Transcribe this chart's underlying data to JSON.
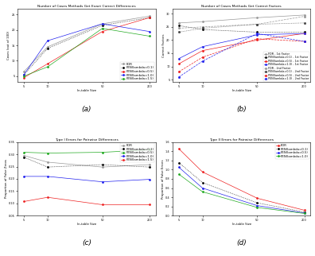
{
  "x": [
    5,
    10,
    50,
    200
  ],
  "title_a": "Number of Cases Methods Get Exact Correct Differences",
  "title_b": "Number of Cases Methods Get Correct Factors",
  "title_c": "Type I Errors for Pairwise Differences",
  "title_d": "Type II Errors for Pairwise Differences",
  "xlabel": "In-table Size",
  "ylabel_a": "Cases (out of 100)",
  "ylabel_b": "Correct Factors",
  "ylabel_c": "Proportion of False Zeros",
  "ylabel_d": "Proportion of False Errors",
  "a_lines": [
    {
      "label": "FDR",
      "style": "solid",
      "color": "#999999",
      "marker": "o",
      "data": [
        6.5,
        14.5,
        22.0,
        24.5
      ]
    },
    {
      "label": "PEN(lambda=0.1)",
      "style": "dotted",
      "color": "#000000",
      "marker": "o",
      "data": [
        5.5,
        14.0,
        21.5,
        24.0
      ]
    },
    {
      "label": "PEN(lambda=0.5)",
      "style": "solid",
      "color": "#EE2222",
      "marker": "o",
      "data": [
        4.5,
        9.0,
        19.5,
        24.0
      ]
    },
    {
      "label": "PEN(lambda=1.0)",
      "style": "solid",
      "color": "#2222EE",
      "marker": "o",
      "data": [
        5.5,
        16.5,
        22.0,
        19.5
      ]
    },
    {
      "label": "PEN(lambda=1.5)",
      "style": "solid",
      "color": "#22AA22",
      "marker": "o",
      "data": [
        5.0,
        8.0,
        20.5,
        18.0
      ]
    }
  ],
  "b_lines": [
    {
      "label": "FDR - 1st Factor",
      "style": "solid",
      "color": "#999999",
      "marker": "o",
      "data": [
        26.5,
        27.0,
        28.5,
        29.5
      ]
    },
    {
      "label": "PEN(lambda=0.1) - 1st Factor",
      "style": "dotted",
      "color": "#000000",
      "marker": "o",
      "data": [
        25.5,
        24.0,
        23.0,
        23.0
      ]
    },
    {
      "label": "PEN(lambda=0.5) - 1st Factor",
      "style": "solid",
      "color": "#EE2222",
      "marker": "o",
      "data": [
        11.0,
        16.0,
        20.0,
        22.5
      ]
    },
    {
      "label": "PEN(lambda=1.0) - 1st Factor",
      "style": "solid",
      "color": "#2222EE",
      "marker": "o",
      "data": [
        13.0,
        17.5,
        22.0,
        22.5
      ]
    },
    {
      "label": "FDR - 2nd Factor",
      "style": "dashed",
      "color": "#999999",
      "marker": "s",
      "data": [
        24.5,
        25.0,
        26.0,
        29.0
      ]
    },
    {
      "label": "PEN(lambda=0.1) - 2nd Factor",
      "style": "dotted",
      "color": "#444444",
      "marker": "s",
      "data": [
        23.0,
        24.5,
        26.0,
        26.5
      ]
    },
    {
      "label": "PEN(lambda=0.5) - 2nd Factor",
      "style": "dashed",
      "color": "#EE2222",
      "marker": "s",
      "data": [
        8.0,
        13.5,
        20.5,
        19.5
      ]
    },
    {
      "label": "PEN(lambda=1.0) - 2nd Factor",
      "style": "dashed",
      "color": "#2222EE",
      "marker": "s",
      "data": [
        6.0,
        12.0,
        22.5,
        19.5
      ]
    }
  ],
  "c_lines": [
    {
      "label": "FDR",
      "style": "solid",
      "color": "#999999",
      "marker": "o",
      "data": [
        0.295,
        0.268,
        0.248,
        0.258
      ]
    },
    {
      "label": "PEN(lambda=0.1)",
      "style": "dotted",
      "color": "#000000",
      "marker": "o",
      "data": [
        0.288,
        0.248,
        0.258,
        0.248
      ]
    },
    {
      "label": "PEN(lambda=0.5)",
      "style": "solid",
      "color": "#22AA22",
      "marker": "o",
      "data": [
        0.308,
        0.305,
        0.308,
        0.318
      ]
    },
    {
      "label": "PEN(lambda=1.0)",
      "style": "solid",
      "color": "#2222EE",
      "marker": "o",
      "data": [
        0.21,
        0.21,
        0.188,
        0.198
      ]
    },
    {
      "label": "PEN(lambda=1.5)",
      "style": "solid",
      "color": "#EE2222",
      "marker": "o",
      "data": [
        0.108,
        0.125,
        0.095,
        0.095
      ]
    }
  ],
  "d_lines": [
    {
      "label": "FDR",
      "style": "solid",
      "color": "#EE2222",
      "marker": "o",
      "data": [
        1.45,
        0.95,
        0.38,
        0.12
      ]
    },
    {
      "label": "PEN(lambda=0.1)",
      "style": "dotted",
      "color": "#000000",
      "marker": "o",
      "data": [
        1.15,
        0.72,
        0.28,
        0.08
      ]
    },
    {
      "label": "PEN(lambda=0.5)",
      "style": "solid",
      "color": "#2222EE",
      "marker": "o",
      "data": [
        1.05,
        0.6,
        0.22,
        0.06
      ]
    },
    {
      "label": "PEN(lambda=1.0)",
      "style": "solid",
      "color": "#22AA22",
      "marker": "o",
      "data": [
        0.9,
        0.52,
        0.18,
        0.05
      ]
    }
  ],
  "background_color": "#ffffff",
  "subplot_labels": [
    "(a)",
    "(b)",
    "(c)",
    "(d)"
  ]
}
